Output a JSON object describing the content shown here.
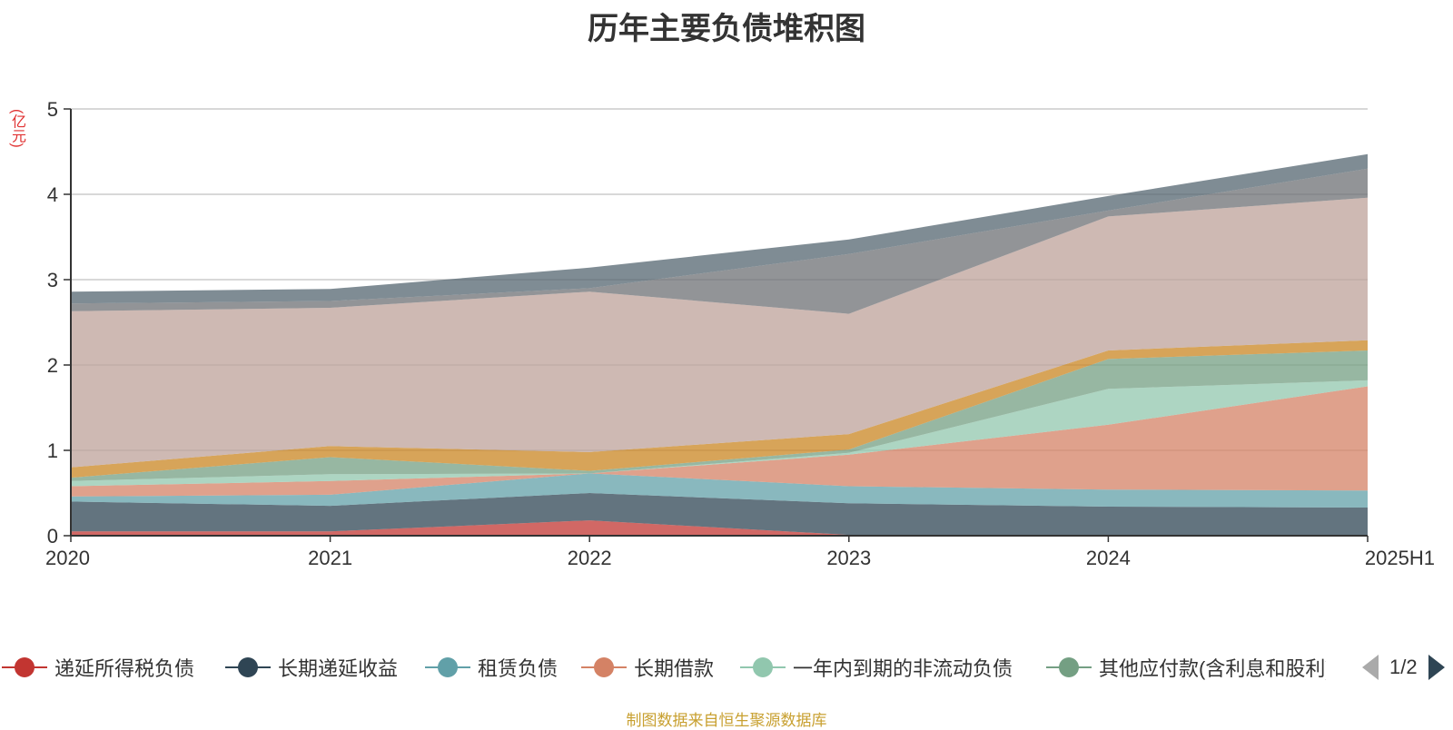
{
  "chart_data": {
    "type": "area",
    "stacked": true,
    "title": "历年主要负债堆积图",
    "unit": "(亿元)",
    "x": [
      "2020",
      "2021",
      "2022",
      "2023",
      "2024",
      "2025H1"
    ],
    "ylim": [
      0,
      5
    ],
    "yticks": [
      "0",
      "1",
      "2",
      "3",
      "4",
      "5"
    ],
    "grid": true,
    "legend_position": "bottom",
    "series": [
      {
        "name": "递延所得税负债",
        "color": "#c23531",
        "values": [
          0.05,
          0.05,
          0.18,
          0.01,
          0.01,
          0.01
        ]
      },
      {
        "name": "长期递延收益",
        "color": "#2f4554",
        "values": [
          0.35,
          0.3,
          0.32,
          0.37,
          0.33,
          0.32
        ]
      },
      {
        "name": "租赁负债",
        "color": "#61a0a8",
        "values": [
          0.06,
          0.13,
          0.23,
          0.2,
          0.2,
          0.2
        ]
      },
      {
        "name": "长期借款",
        "color": "#d48265",
        "values": [
          0.12,
          0.16,
          0.0,
          0.37,
          0.76,
          1.22
        ]
      },
      {
        "name": "一年内到期的非流动负债",
        "color": "#91c7ae",
        "values": [
          0.06,
          0.08,
          0.0,
          0.02,
          0.42,
          0.07
        ]
      },
      {
        "name": "其他应付款(含利息和股利)",
        "color": "#749f83",
        "values": [
          0.04,
          0.2,
          0.03,
          0.04,
          0.35,
          0.35
        ]
      },
      {
        "name": "",
        "color": "#ca8622",
        "values": [
          0.12,
          0.13,
          0.22,
          0.18,
          0.1,
          0.12
        ]
      },
      {
        "name": "",
        "color": "#bda29a",
        "values": [
          1.83,
          1.62,
          1.88,
          1.41,
          1.57,
          1.67
        ]
      },
      {
        "name": "",
        "color": "#6e7074",
        "values": [
          0.09,
          0.08,
          0.04,
          0.7,
          0.07,
          0.34
        ]
      },
      {
        "name": "",
        "color": "#546570",
        "values": [
          0.14,
          0.14,
          0.24,
          0.17,
          0.17,
          0.17
        ]
      }
    ]
  },
  "legend": {
    "page": "1/2"
  },
  "source": "制图数据来自恒生聚源数据库"
}
